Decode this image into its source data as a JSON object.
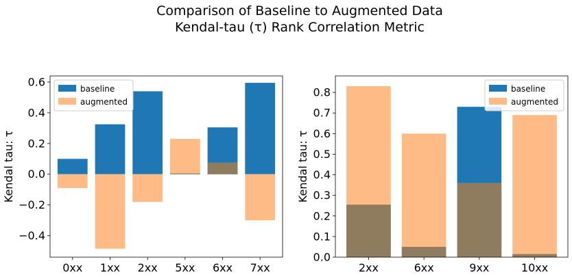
{
  "figure": {
    "title_line1": "Comparison of Baseline to Augmented Data",
    "title_line2": "Kendal-tau (τ) Rank Correlation Metric"
  },
  "colors": {
    "baseline": "#1f77b4",
    "augmented": "#ffbb86",
    "overlap": "#8f7b5e"
  },
  "chart_data": [
    {
      "type": "bar",
      "categories": [
        "0xx",
        "1xx",
        "2xx",
        "5xx",
        "6xx",
        "7xx"
      ],
      "series": [
        {
          "name": "baseline",
          "values": [
            0.1,
            0.325,
            0.54,
            0.005,
            0.305,
            0.595
          ]
        },
        {
          "name": "augmented",
          "values": [
            -0.09,
            -0.485,
            -0.18,
            0.23,
            0.075,
            -0.3
          ]
        }
      ],
      "xlabel": "",
      "ylabel": "Kendal tau: τ",
      "ylim": [
        -0.54,
        0.64
      ],
      "yticks": [
        -0.4,
        -0.2,
        0.0,
        0.2,
        0.4,
        0.6
      ],
      "ytick_labels": [
        "−0.4",
        "−0.2",
        "0.0",
        "0.2",
        "0.4",
        "0.6"
      ],
      "legend": {
        "placement": "top-left",
        "entries": [
          "baseline",
          "augmented"
        ]
      }
    },
    {
      "type": "bar",
      "categories": [
        "2xx",
        "6xx",
        "9xx",
        "10xx"
      ],
      "series": [
        {
          "name": "baseline",
          "values": [
            0.255,
            0.05,
            0.73,
            0.015
          ]
        },
        {
          "name": "augmented",
          "values": [
            0.83,
            0.6,
            0.36,
            0.69
          ]
        }
      ],
      "xlabel": "",
      "ylabel": "Kendal tau: τ",
      "ylim": [
        0.0,
        0.88
      ],
      "yticks": [
        0.0,
        0.1,
        0.2,
        0.3,
        0.4,
        0.5,
        0.6,
        0.7,
        0.8
      ],
      "ytick_labels": [
        "0.0",
        "0.1",
        "0.2",
        "0.3",
        "0.4",
        "0.5",
        "0.6",
        "0.7",
        "0.8"
      ],
      "legend": {
        "placement": "top-right",
        "entries": [
          "baseline",
          "augmented"
        ]
      }
    }
  ]
}
